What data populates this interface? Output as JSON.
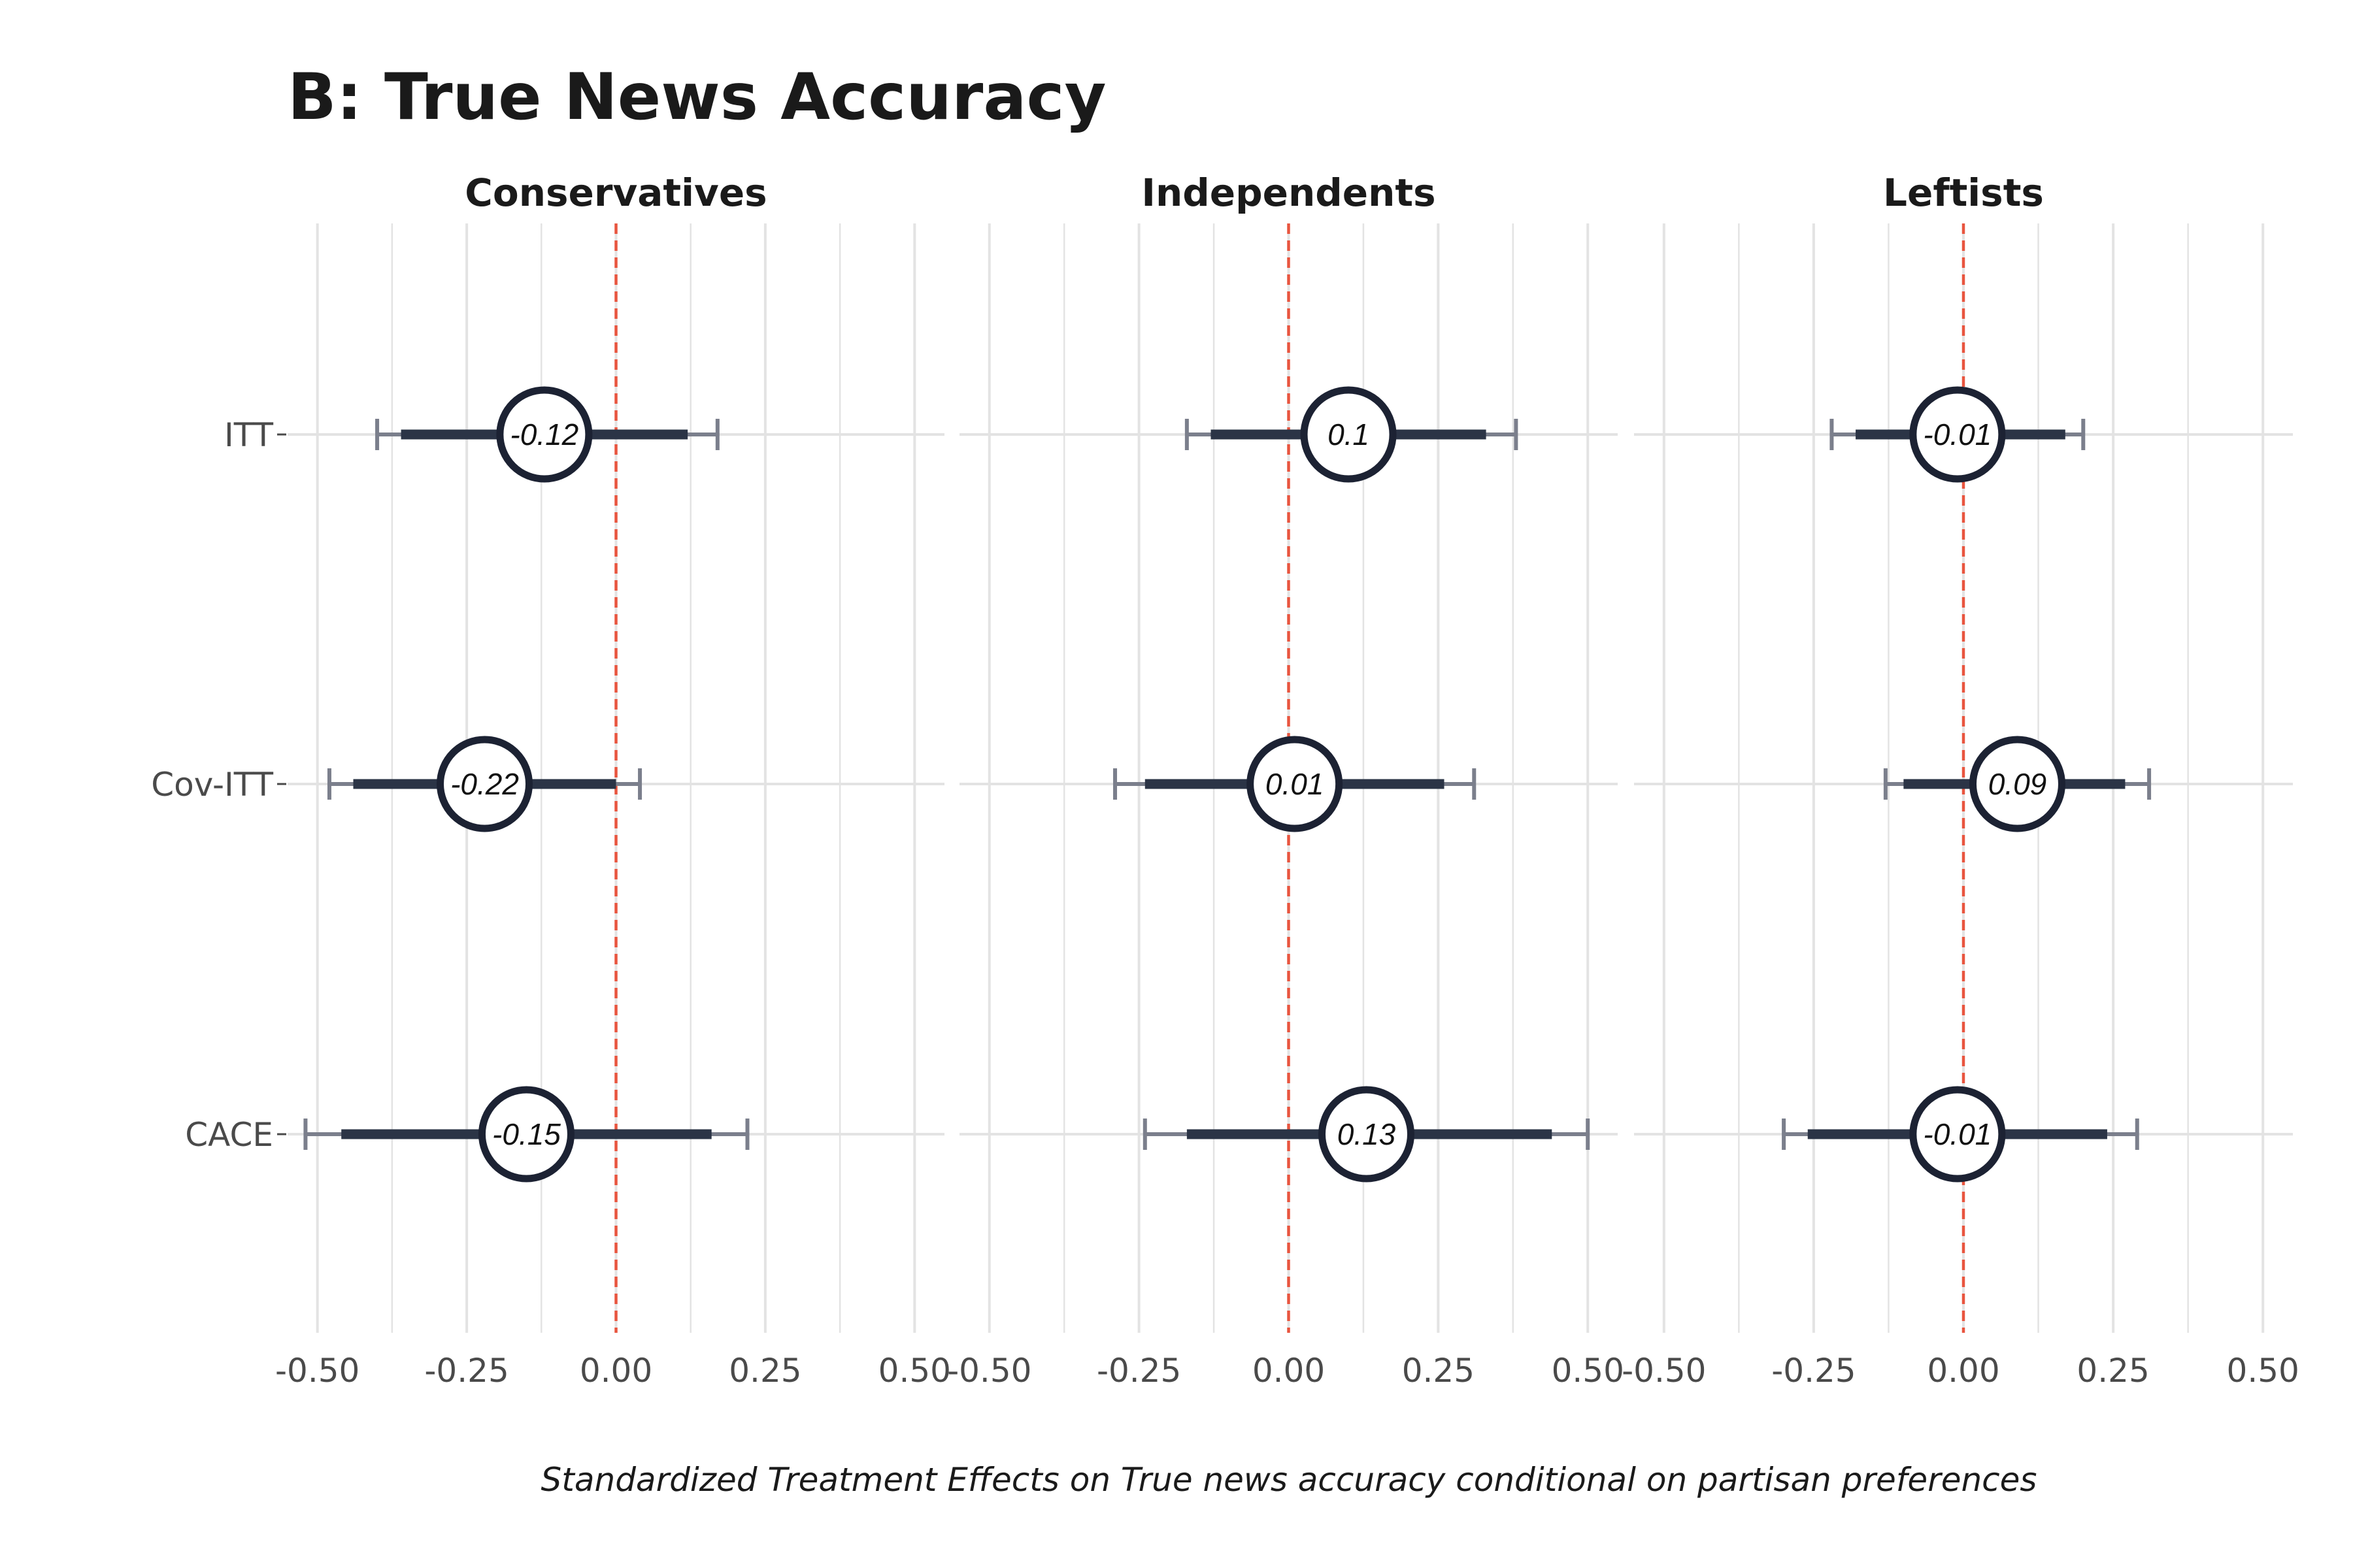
{
  "chart_data": {
    "type": "forest",
    "title": "B: True News Accuracy",
    "caption": "Standardized Treatment Effects on True news accuracy conditional on partisan preferences",
    "xlabel": "Standardized Treatment Effects on True news accuracy conditional on partisan preferences",
    "ylabel": "",
    "xlim": [
      -0.55,
      0.55
    ],
    "x_ticks": [
      -0.5,
      -0.25,
      0,
      0.25,
      0.5
    ],
    "x_tick_labels": [
      "-0.50",
      "-0.25",
      "0.00",
      "0.25",
      "0.50"
    ],
    "rows": [
      "ITT",
      "Cov-ITT",
      "CACE"
    ],
    "reference_line": 0,
    "grid": true,
    "colors": {
      "reference_line": "#e8553f",
      "grid": "#e3e3e3",
      "inner_interval": "#2b3446",
      "outer_interval": "#7b7f8c",
      "point_stroke": "#1c2233",
      "point_fill": "#ffffff"
    },
    "facets": [
      {
        "title": "Conservatives",
        "estimates": [
          {
            "label": "ITT",
            "estimate": -0.12,
            "display": "-0.12",
            "ci90": [
              -0.36,
              0.12
            ],
            "ci95": [
              -0.4,
              0.17
            ]
          },
          {
            "label": "Cov-ITT",
            "estimate": -0.22,
            "display": "-0.22",
            "ci90": [
              -0.44,
              0.0
            ],
            "ci95": [
              -0.48,
              0.04
            ]
          },
          {
            "label": "CACE",
            "estimate": -0.15,
            "display": "-0.15",
            "ci90": [
              -0.46,
              0.16
            ],
            "ci95": [
              -0.52,
              0.22
            ]
          }
        ]
      },
      {
        "title": "Independents",
        "estimates": [
          {
            "label": "ITT",
            "estimate": 0.1,
            "display": "0.1",
            "ci90": [
              -0.13,
              0.33
            ],
            "ci95": [
              -0.17,
              0.38
            ]
          },
          {
            "label": "Cov-ITT",
            "estimate": 0.01,
            "display": "0.01",
            "ci90": [
              -0.24,
              0.26
            ],
            "ci95": [
              -0.29,
              0.31
            ]
          },
          {
            "label": "CACE",
            "estimate": 0.13,
            "display": "0.13",
            "ci90": [
              -0.17,
              0.44
            ],
            "ci95": [
              -0.24,
              0.5
            ]
          }
        ]
      },
      {
        "title": "Leftists",
        "estimates": [
          {
            "label": "ITT",
            "estimate": -0.01,
            "display": "-0.01",
            "ci90": [
              -0.18,
              0.17
            ],
            "ci95": [
              -0.22,
              0.2
            ]
          },
          {
            "label": "Cov-ITT",
            "estimate": 0.09,
            "display": "0.09",
            "ci90": [
              -0.1,
              0.27
            ],
            "ci95": [
              -0.13,
              0.31
            ]
          },
          {
            "label": "CACE",
            "estimate": -0.01,
            "display": "-0.01",
            "ci90": [
              -0.26,
              0.24
            ],
            "ci95": [
              -0.3,
              0.29
            ]
          }
        ]
      }
    ]
  }
}
